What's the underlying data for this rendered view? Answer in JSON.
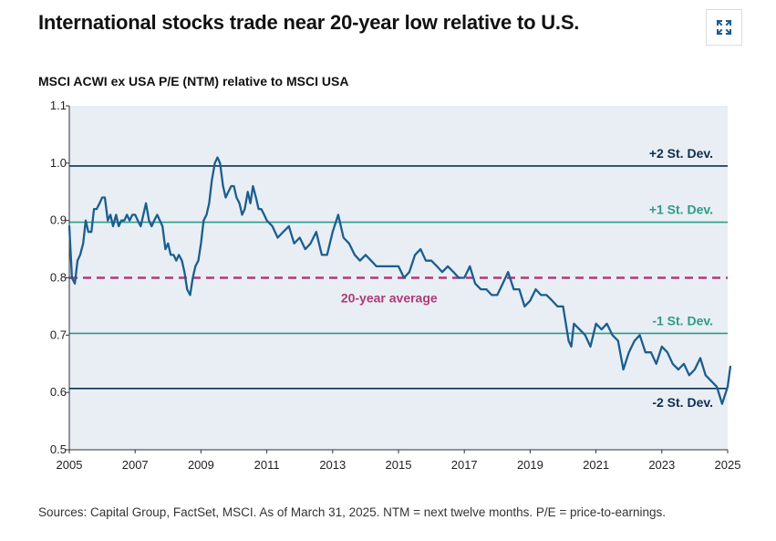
{
  "header": {
    "title": "International stocks trade near 20-year low relative to U.S.",
    "expand_icon": "expand-arrows-icon"
  },
  "footer": {
    "source": "Sources: Capital Group, FactSet, MSCI. As of March 31, 2025. NTM = next twelve months. P/E = price-to-earnings."
  },
  "colors": {
    "series": "#1b5e8e",
    "std2": "#0f2f4f",
    "std1": "#2f9b87",
    "average": "#b03a7a",
    "plot_bg": "#e8eef4"
  },
  "chart_data": {
    "type": "line",
    "title": "MSCI ACWI ex USA P/E (NTM) relative to MSCI USA",
    "xlabel": "",
    "ylabel": "",
    "xlim": [
      2005,
      2025
    ],
    "ylim": [
      0.5,
      1.1
    ],
    "x_ticks": [
      "2005",
      "2007",
      "2009",
      "2011",
      "2013",
      "2015",
      "2017",
      "2019",
      "2021",
      "2023",
      "2025"
    ],
    "y_ticks": [
      "0.5",
      "0.6",
      "0.7",
      "0.8",
      "0.9",
      "1.0",
      "1.1"
    ],
    "grid": false,
    "reference_lines": [
      {
        "label": "+2 St. Dev.",
        "value": 0.995,
        "style": "solid",
        "color_key": "std2"
      },
      {
        "label": "+1 St. Dev.",
        "value": 0.897,
        "style": "solid",
        "color_key": "std1"
      },
      {
        "label": "20-year average",
        "value": 0.8,
        "style": "dashed",
        "color_key": "average"
      },
      {
        "label": "-1 St. Dev.",
        "value": 0.703,
        "style": "solid",
        "color_key": "std1"
      },
      {
        "label": "-2 St. Dev.",
        "value": 0.607,
        "style": "solid",
        "color_key": "std2"
      }
    ],
    "series": [
      {
        "x": [
          2005.0,
          2005.08,
          2005.17,
          2005.25,
          2005.33,
          2005.42,
          2005.5,
          2005.58,
          2005.67,
          2005.75,
          2005.83,
          2005.92,
          2006.0,
          2006.08,
          2006.17,
          2006.25,
          2006.33,
          2006.42,
          2006.5,
          2006.58,
          2006.67,
          2006.75,
          2006.83,
          2006.92,
          2007.0,
          2007.08,
          2007.17,
          2007.25,
          2007.33,
          2007.42,
          2007.5,
          2007.58,
          2007.67,
          2007.75,
          2007.83,
          2007.92,
          2008.0,
          2008.08,
          2008.17,
          2008.25,
          2008.33,
          2008.42,
          2008.5,
          2008.58,
          2008.67,
          2008.75,
          2008.83,
          2008.92,
          2009.0,
          2009.08,
          2009.17,
          2009.25,
          2009.33,
          2009.42,
          2009.5,
          2009.58,
          2009.67,
          2009.75,
          2009.83,
          2009.92,
          2010.0,
          2010.08,
          2010.17,
          2010.25,
          2010.33,
          2010.42,
          2010.5,
          2010.58,
          2010.67,
          2010.75,
          2010.83,
          2010.92,
          2011.0,
          2011.17,
          2011.33,
          2011.5,
          2011.67,
          2011.83,
          2012.0,
          2012.17,
          2012.33,
          2012.5,
          2012.67,
          2012.83,
          2013.0,
          2013.17,
          2013.33,
          2013.5,
          2013.67,
          2013.83,
          2014.0,
          2014.17,
          2014.33,
          2014.5,
          2014.67,
          2014.83,
          2015.0,
          2015.17,
          2015.33,
          2015.5,
          2015.67,
          2015.83,
          2016.0,
          2016.17,
          2016.33,
          2016.5,
          2016.67,
          2016.83,
          2017.0,
          2017.17,
          2017.33,
          2017.5,
          2017.67,
          2017.83,
          2018.0,
          2018.17,
          2018.33,
          2018.5,
          2018.67,
          2018.83,
          2019.0,
          2019.17,
          2019.33,
          2019.5,
          2019.67,
          2019.83,
          2020.0,
          2020.17,
          2020.25,
          2020.33,
          2020.5,
          2020.67,
          2020.83,
          2021.0,
          2021.17,
          2021.33,
          2021.5,
          2021.67,
          2021.83,
          2022.0,
          2022.17,
          2022.33,
          2022.5,
          2022.67,
          2022.83,
          2023.0,
          2023.17,
          2023.33,
          2023.5,
          2023.67,
          2023.83,
          2024.0,
          2024.17,
          2024.33,
          2024.5,
          2024.67,
          2024.83,
          2025.0,
          2025.08
        ],
        "values": [
          0.89,
          0.8,
          0.79,
          0.83,
          0.84,
          0.86,
          0.9,
          0.88,
          0.88,
          0.92,
          0.92,
          0.93,
          0.94,
          0.94,
          0.9,
          0.91,
          0.89,
          0.91,
          0.89,
          0.9,
          0.9,
          0.91,
          0.9,
          0.91,
          0.91,
          0.9,
          0.89,
          0.91,
          0.93,
          0.9,
          0.89,
          0.9,
          0.91,
          0.9,
          0.89,
          0.85,
          0.86,
          0.84,
          0.84,
          0.83,
          0.84,
          0.83,
          0.81,
          0.78,
          0.77,
          0.8,
          0.82,
          0.83,
          0.86,
          0.9,
          0.91,
          0.93,
          0.97,
          1.0,
          1.01,
          1.0,
          0.96,
          0.94,
          0.95,
          0.96,
          0.96,
          0.94,
          0.93,
          0.91,
          0.92,
          0.95,
          0.93,
          0.96,
          0.94,
          0.92,
          0.92,
          0.91,
          0.9,
          0.89,
          0.87,
          0.88,
          0.89,
          0.86,
          0.87,
          0.85,
          0.86,
          0.88,
          0.84,
          0.84,
          0.88,
          0.91,
          0.87,
          0.86,
          0.84,
          0.83,
          0.84,
          0.83,
          0.82,
          0.82,
          0.82,
          0.82,
          0.82,
          0.8,
          0.81,
          0.84,
          0.85,
          0.83,
          0.83,
          0.82,
          0.81,
          0.82,
          0.81,
          0.8,
          0.8,
          0.82,
          0.79,
          0.78,
          0.78,
          0.77,
          0.77,
          0.79,
          0.81,
          0.78,
          0.78,
          0.75,
          0.76,
          0.78,
          0.77,
          0.77,
          0.76,
          0.75,
          0.75,
          0.69,
          0.68,
          0.72,
          0.71,
          0.7,
          0.68,
          0.72,
          0.71,
          0.72,
          0.7,
          0.69,
          0.64,
          0.67,
          0.69,
          0.7,
          0.67,
          0.67,
          0.65,
          0.68,
          0.67,
          0.65,
          0.64,
          0.65,
          0.63,
          0.64,
          0.66,
          0.63,
          0.62,
          0.61,
          0.58,
          0.61,
          0.645
        ]
      }
    ]
  }
}
